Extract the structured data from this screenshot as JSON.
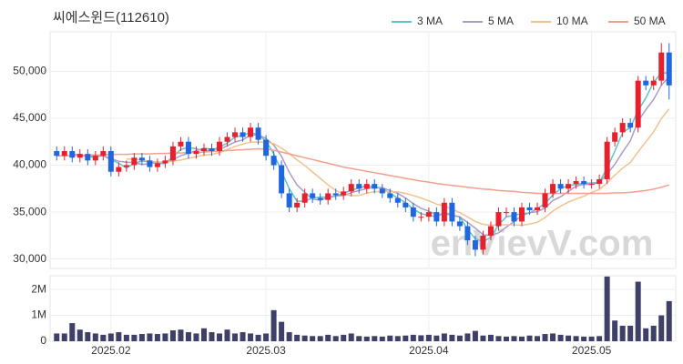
{
  "chart_data": {
    "type": "candlestick",
    "title": "씨에스윈드(112610)",
    "watermark": "enVievV.com",
    "categories": [
      null,
      null,
      null,
      null,
      null,
      null,
      null,
      "2025.02",
      null,
      null,
      null,
      null,
      null,
      null,
      null,
      null,
      null,
      null,
      null,
      null,
      null,
      null,
      null,
      null,
      null,
      null,
      null,
      "2025.03",
      null,
      null,
      null,
      null,
      null,
      null,
      null,
      null,
      null,
      null,
      null,
      null,
      null,
      null,
      null,
      null,
      null,
      null,
      null,
      null,
      "2025.04",
      null,
      null,
      null,
      null,
      null,
      null,
      null,
      null,
      null,
      null,
      null,
      null,
      null,
      null,
      null,
      null,
      null,
      null,
      null,
      null,
      "2025.05",
      null,
      null,
      null,
      null,
      null,
      null,
      null,
      null,
      null,
      null
    ],
    "open": [
      41500,
      41000,
      41500,
      40800,
      41200,
      40500,
      41000,
      41500,
      39300,
      39800,
      40000,
      40800,
      40500,
      39800,
      40200,
      40500,
      42000,
      42500,
      41200,
      41500,
      41800,
      41500,
      42500,
      43000,
      43500,
      43000,
      44000,
      42700,
      41000,
      40000,
      37000,
      35500,
      36000,
      37000,
      36500,
      36300,
      37000,
      36800,
      37200,
      38000,
      37500,
      38000,
      37500,
      37000,
      36500,
      36000,
      35500,
      34500,
      34500,
      35000,
      34000,
      36000,
      34000,
      33500,
      32000,
      31000,
      32500,
      33500,
      35000,
      35000,
      34000,
      35500,
      35200,
      35500,
      37000,
      38000,
      37500,
      38000,
      38300,
      38000,
      38000,
      38500,
      42500,
      43500,
      44500,
      44000,
      49000,
      48500,
      49000,
      52000
    ],
    "high": [
      42000,
      42000,
      42000,
      41700,
      41700,
      41500,
      42000,
      42000,
      40300,
      40500,
      41300,
      41300,
      41000,
      40700,
      41000,
      42500,
      43000,
      43000,
      42000,
      42300,
      42300,
      43000,
      43500,
      44000,
      44000,
      44500,
      44500,
      43200,
      41500,
      40500,
      37500,
      36500,
      37500,
      37500,
      37000,
      37500,
      37500,
      37700,
      38500,
      38500,
      38500,
      38500,
      38000,
      37500,
      37000,
      36500,
      36000,
      35000,
      35500,
      35500,
      36500,
      36500,
      34500,
      34000,
      32500,
      33000,
      34000,
      35500,
      35500,
      35500,
      36000,
      36000,
      36000,
      37500,
      38500,
      38500,
      38500,
      38800,
      38800,
      38500,
      39000,
      43000,
      44000,
      45000,
      45000,
      49500,
      49500,
      49500,
      53000,
      53000
    ],
    "low": [
      40500,
      40500,
      40300,
      40300,
      40000,
      40000,
      40500,
      38800,
      38800,
      39300,
      39500,
      40000,
      39300,
      39300,
      39700,
      40000,
      41500,
      40700,
      40700,
      41000,
      41000,
      41000,
      42000,
      42500,
      42500,
      42500,
      42200,
      40500,
      39500,
      36500,
      35000,
      35000,
      35500,
      36000,
      35800,
      35800,
      36300,
      36300,
      36700,
      37000,
      37000,
      37000,
      36500,
      36000,
      35500,
      35000,
      34000,
      34000,
      34000,
      33500,
      33500,
      33500,
      33000,
      31500,
      30300,
      30500,
      32000,
      33000,
      34500,
      33500,
      33500,
      34700,
      34700,
      35000,
      36500,
      37000,
      37000,
      37500,
      37500,
      37500,
      37500,
      38000,
      42000,
      43000,
      43500,
      43500,
      48000,
      48000,
      48500,
      47000
    ],
    "close": [
      41000,
      41500,
      40800,
      41200,
      40500,
      41000,
      41500,
      39300,
      39800,
      40000,
      40800,
      40500,
      39800,
      40200,
      40500,
      42000,
      42500,
      41200,
      41500,
      41800,
      41500,
      42500,
      43000,
      43500,
      43000,
      44000,
      42700,
      41000,
      40000,
      37000,
      35500,
      36000,
      37000,
      36500,
      36300,
      37000,
      36800,
      37200,
      38000,
      37500,
      38000,
      37500,
      37000,
      36500,
      36000,
      35500,
      34500,
      34500,
      35000,
      34000,
      36000,
      34000,
      33500,
      32000,
      31000,
      32500,
      33500,
      35000,
      35000,
      34000,
      35500,
      35200,
      35500,
      37000,
      38000,
      37500,
      38000,
      38300,
      38000,
      38000,
      38500,
      42500,
      43500,
      44500,
      44000,
      49000,
      48500,
      49000,
      52000,
      48500
    ],
    "up_color": "#e8202e",
    "down_color": "#1f66e0",
    "ylim": [
      29000,
      54200
    ],
    "yticks": [
      {
        "value": 30000,
        "label": "30,000"
      },
      {
        "value": 35000,
        "label": "35,000"
      },
      {
        "value": 40000,
        "label": "40,000"
      },
      {
        "value": 45000,
        "label": "45,000"
      },
      {
        "value": 50000,
        "label": "50,000"
      }
    ],
    "ma": [
      {
        "name": "3 MA",
        "color": "#5ec4c8",
        "values": [
          null,
          null,
          41100,
          41167,
          40833,
          40900,
          41000,
          40600,
          40200,
          39700,
          40200,
          40433,
          40367,
          40167,
          40167,
          40900,
          41667,
          41900,
          41733,
          41500,
          41600,
          41933,
          42333,
          43000,
          43167,
          43500,
          43233,
          42567,
          41233,
          39333,
          37500,
          36167,
          36167,
          36500,
          36600,
          36600,
          36700,
          37000,
          37333,
          37567,
          37833,
          37667,
          37500,
          37000,
          36500,
          36000,
          35333,
          34833,
          34667,
          34500,
          35000,
          34667,
          34500,
          33167,
          32167,
          31833,
          32333,
          33667,
          34500,
          34667,
          34833,
          34900,
          35400,
          35900,
          36833,
          37500,
          37833,
          37933,
          38100,
          38100,
          38167,
          39667,
          41500,
          43500,
          44000,
          45833,
          47167,
          48833,
          49833,
          49833
        ]
      },
      {
        "name": "5 MA",
        "color": "#a99cc9",
        "values": [
          null,
          null,
          null,
          null,
          41000,
          41000,
          41000,
          40700,
          40420,
          40320,
          40280,
          40080,
          40180,
          40260,
          40360,
          40600,
          41000,
          41280,
          41540,
          41800,
          41700,
          41700,
          42060,
          42460,
          42700,
          43200,
          43240,
          42840,
          42140,
          40940,
          39240,
          37900,
          37100,
          36400,
          36260,
          36560,
          36720,
          36760,
          37060,
          37300,
          37500,
          37640,
          37600,
          37300,
          37000,
          36500,
          35900,
          35400,
          35100,
          34700,
          34800,
          34700,
          34500,
          33900,
          33300,
          32600,
          32500,
          32800,
          33400,
          34000,
          34600,
          34940,
          35040,
          35440,
          36240,
          36640,
          37200,
          37760,
          37960,
          37960,
          38160,
          39060,
          40100,
          41400,
          42600,
          44700,
          45900,
          47000,
          48500,
          49400
        ]
      },
      {
        "name": "10 MA",
        "color": "#f2c28e",
        "values": [
          null,
          null,
          null,
          null,
          null,
          null,
          null,
          null,
          null,
          40660,
          40640,
          40540,
          40440,
          40340,
          40340,
          40440,
          40540,
          40730,
          40900,
          41080,
          41150,
          41350,
          41670,
          42000,
          42250,
          42450,
          42470,
          42450,
          42300,
          41820,
          41220,
          40570,
          39970,
          39270,
          38600,
          37900,
          37310,
          36930,
          36730,
          36780,
          37030,
          37180,
          37180,
          37180,
          37150,
          37000,
          36770,
          36500,
          36200,
          35850,
          35650,
          35300,
          34950,
          34500,
          34000,
          33700,
          33600,
          33650,
          33650,
          33650,
          33600,
          33720,
          33920,
          34420,
          35120,
          35620,
          36070,
          36400,
          36700,
          37100,
          37400,
          38130,
          38930,
          39680,
          40280,
          41430,
          42480,
          43550,
          44950,
          46000
        ]
      },
      {
        "name": "50 MA",
        "color": "#f0a08c",
        "values": [
          41000,
          41000,
          41050,
          41050,
          41100,
          41100,
          41100,
          41150,
          41150,
          41150,
          41200,
          41200,
          41200,
          41250,
          41250,
          41300,
          41300,
          41350,
          41350,
          41400,
          41450,
          41500,
          41550,
          41600,
          41650,
          41700,
          41750,
          41700,
          41600,
          41400,
          41200,
          41000,
          40800,
          40600,
          40400,
          40200,
          40000,
          39800,
          39650,
          39500,
          39350,
          39200,
          39050,
          38900,
          38750,
          38600,
          38450,
          38300,
          38200,
          38050,
          37950,
          37850,
          37750,
          37650,
          37550,
          37450,
          37400,
          37300,
          37250,
          37200,
          37100,
          37050,
          37000,
          37000,
          37000,
          37000,
          37000,
          37000,
          37000,
          37000,
          37000,
          37000,
          37050,
          37050,
          37100,
          37200,
          37300,
          37450,
          37650,
          37900
        ]
      }
    ],
    "volume": {
      "color": "#3e4068",
      "ylim": [
        0,
        2530000
      ],
      "yticks": [
        0,
        {
          "value": 1000000,
          "label": "1M"
        },
        {
          "value": 2000000,
          "label": "2M"
        }
      ],
      "values": [
        300000,
        300000,
        700000,
        450000,
        350000,
        300000,
        250000,
        300000,
        350000,
        250000,
        250000,
        280000,
        300000,
        280000,
        300000,
        420000,
        450000,
        350000,
        300000,
        500000,
        350000,
        300000,
        450000,
        300000,
        350000,
        300000,
        250000,
        300000,
        1200000,
        750000,
        350000,
        250000,
        220000,
        200000,
        200000,
        250000,
        200000,
        250000,
        300000,
        200000,
        180000,
        200000,
        180000,
        220000,
        200000,
        220000,
        250000,
        230000,
        250000,
        220000,
        300000,
        250000,
        220000,
        300000,
        400000,
        220000,
        250000,
        200000,
        180000,
        200000,
        180000,
        220000,
        200000,
        280000,
        300000,
        250000,
        220000,
        200000,
        180000,
        180000,
        200000,
        2500000,
        800000,
        600000,
        600000,
        2300000,
        500000,
        600000,
        1000000,
        1550000
      ]
    },
    "grid": true
  }
}
